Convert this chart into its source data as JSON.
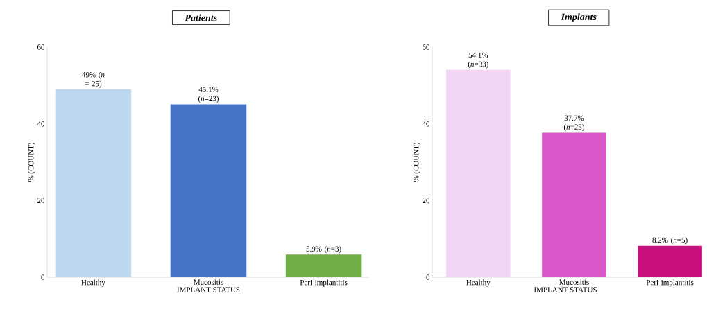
{
  "chart_data": [
    {
      "type": "bar",
      "title": "Patients",
      "xlabel": "IMPLANT STATUS",
      "ylabel": "% (COUNT)",
      "categories": [
        "Healthy",
        "Mucositis",
        "Peri-implantitis"
      ],
      "values": [
        49,
        45.1,
        5.9
      ],
      "colors": [
        "#bdd7ee",
        "#4472c4",
        "#70ad47"
      ],
      "value_labels": [
        "49% (*n* = 25)",
        "45.1% (*n*=23)",
        "5.9% (*n*=3)"
      ],
      "ylim": [
        0,
        60
      ],
      "yticks": [
        0,
        20,
        40,
        60
      ]
    },
    {
      "type": "bar",
      "title": "Implants",
      "xlabel": "IMPLANT STATUS",
      "ylabel": "% (COUNT)",
      "categories": [
        "Healthy",
        "Mucositis",
        "Peri-implantitis"
      ],
      "values": [
        54.1,
        37.7,
        8.2
      ],
      "colors": [
        "#f2d4f4",
        "#d957c8",
        "#c90f7c"
      ],
      "value_labels": [
        "54.1% (*n*=33)",
        "37.7% (*n*=23)",
        "8.2% (*n*=5)"
      ],
      "ylim": [
        0,
        60
      ],
      "yticks": [
        0,
        20,
        40,
        60
      ]
    }
  ]
}
